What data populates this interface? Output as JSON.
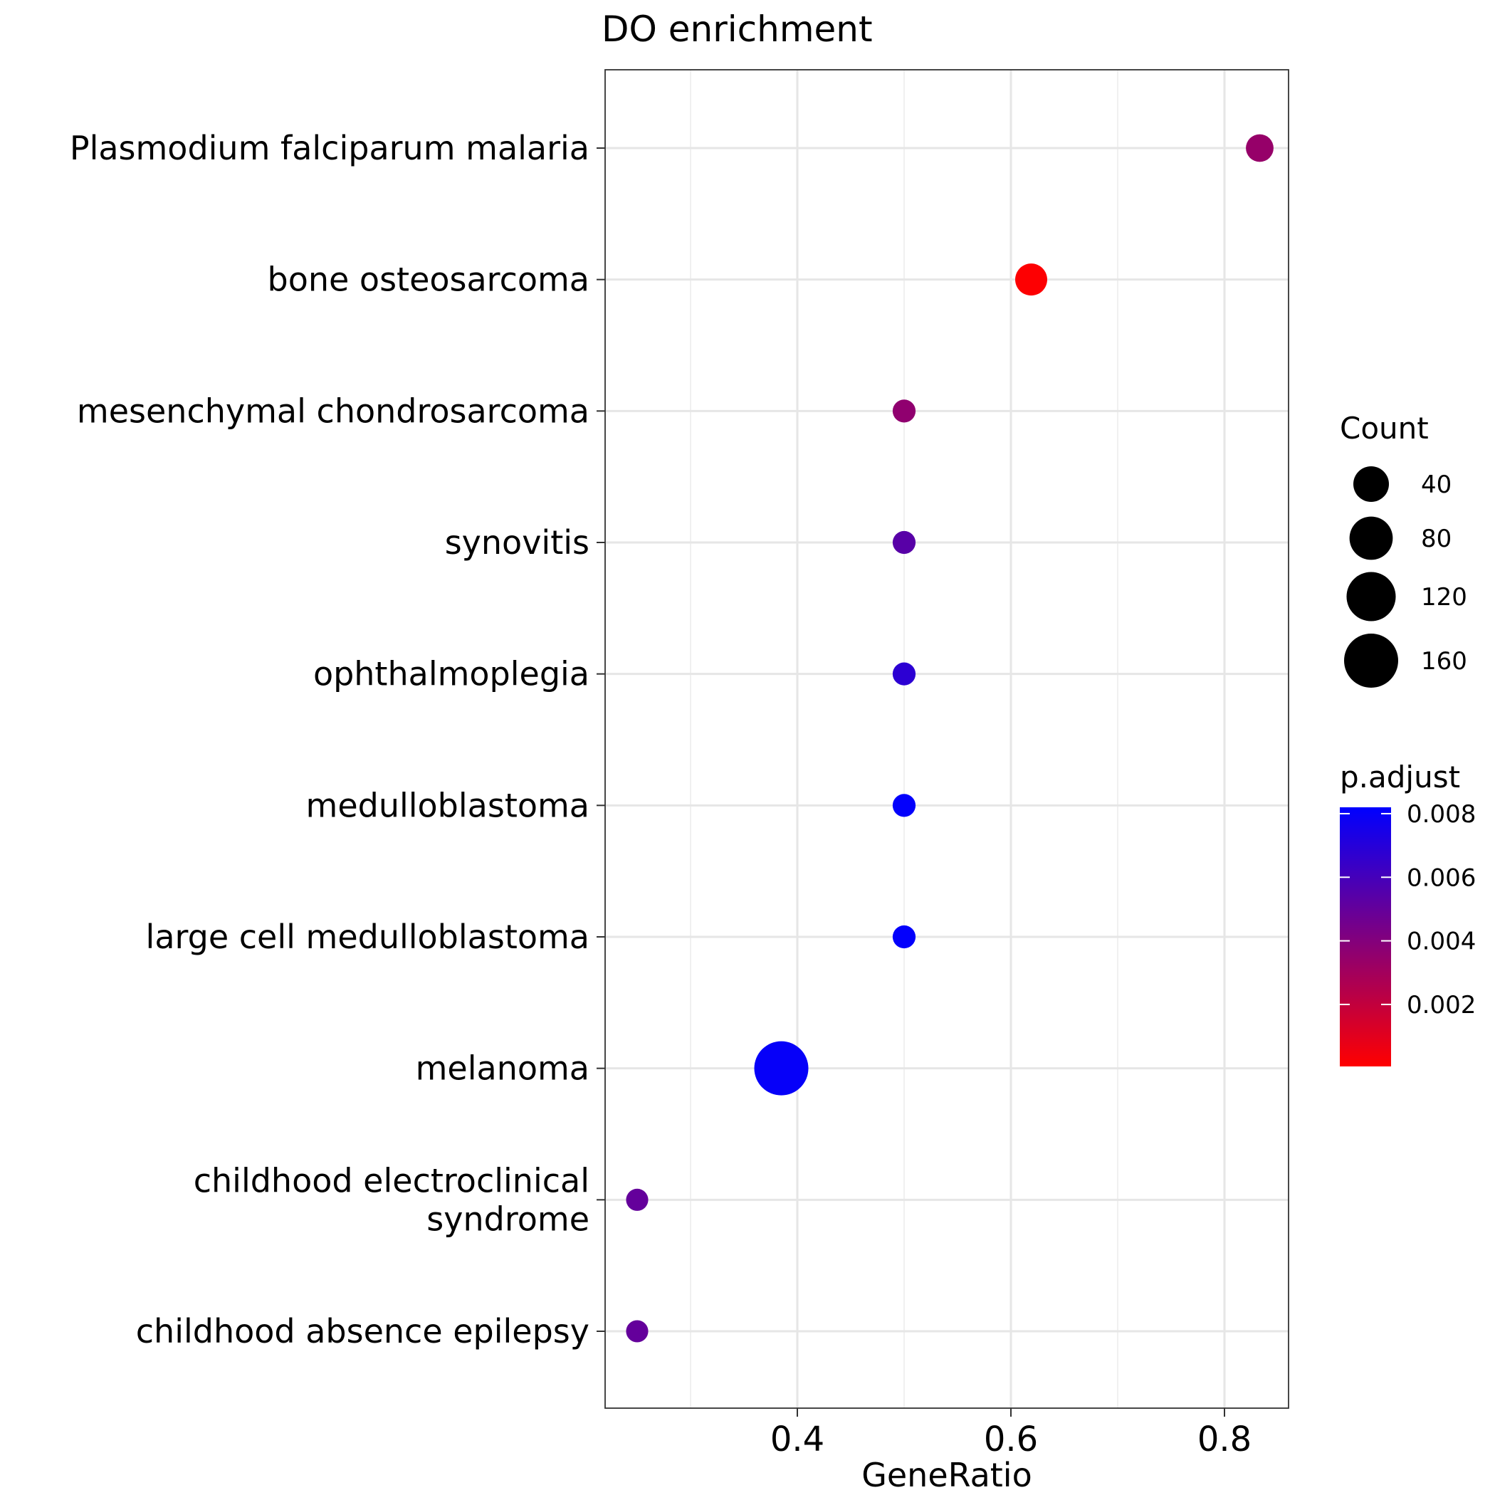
{
  "chart_data": {
    "type": "scatter",
    "title": "DO enrichment",
    "xlabel": "GeneRatio",
    "ylabel": "",
    "xlim": [
      0.22,
      0.86
    ],
    "x_ticks": [
      0.4,
      0.6,
      0.8
    ],
    "x_tick_labels": [
      "0.4",
      "0.6",
      "0.8"
    ],
    "x_minor_grid": [
      0.3,
      0.5,
      0.7
    ],
    "grid": true,
    "categories": [
      [
        "Plasmodium falciparum malaria"
      ],
      [
        "bone osteosarcoma"
      ],
      [
        "mesenchymal chondrosarcoma"
      ],
      [
        "synovitis"
      ],
      [
        "ophthalmoplegia"
      ],
      [
        "medulloblastoma"
      ],
      [
        "large cell medulloblastoma"
      ],
      [
        "melanoma"
      ],
      [
        "childhood electroclinical",
        "syndrome"
      ],
      [
        "childhood absence epilepsy"
      ]
    ],
    "points": [
      {
        "x": 0.833,
        "count": 13,
        "p_adjust": 0.0034
      },
      {
        "x": 0.619,
        "count": 26,
        "p_adjust": 0.0001
      },
      {
        "x": 0.5,
        "count": 4,
        "p_adjust": 0.0036
      },
      {
        "x": 0.5,
        "count": 4,
        "p_adjust": 0.0054
      },
      {
        "x": 0.5,
        "count": 4,
        "p_adjust": 0.0068
      },
      {
        "x": 0.5,
        "count": 4,
        "p_adjust": 0.0081
      },
      {
        "x": 0.5,
        "count": 4,
        "p_adjust": 0.0081
      },
      {
        "x": 0.385,
        "count": 160,
        "p_adjust": 0.008
      },
      {
        "x": 0.25,
        "count": 3,
        "p_adjust": 0.005
      },
      {
        "x": 0.25,
        "count": 3,
        "p_adjust": 0.005
      }
    ],
    "size_legend": {
      "title": "Count",
      "values": [
        40,
        80,
        120,
        160
      ],
      "labels": [
        "40",
        "80",
        "120",
        "160"
      ]
    },
    "color_legend": {
      "title": "p.adjust",
      "range": [
        5e-05,
        0.0082
      ],
      "ticks": [
        0.008,
        0.006,
        0.004,
        0.002
      ],
      "tick_labels": [
        "0.008",
        "0.006",
        "0.004",
        "0.002"
      ],
      "low_color": "#ff0000",
      "high_color": "#0000ff"
    },
    "legend_position": "right"
  }
}
